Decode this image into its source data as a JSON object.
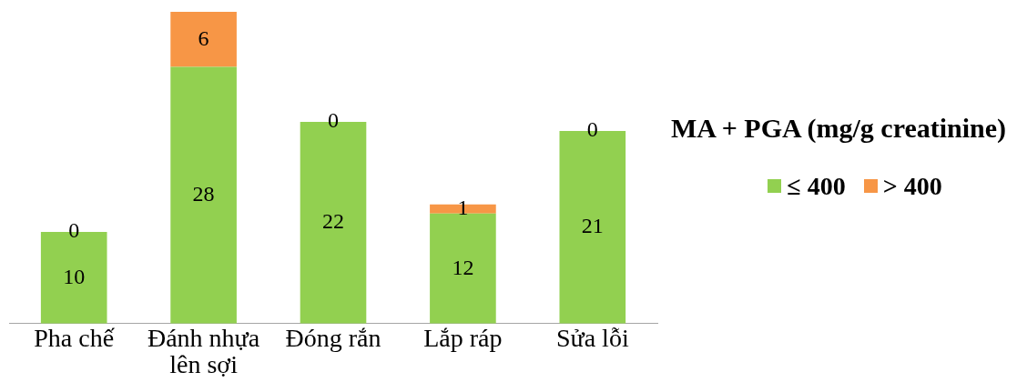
{
  "chart_data": {
    "type": "bar",
    "stacked": true,
    "categories": [
      "Pha chế",
      "Đánh nhựa lên sợi",
      "Đóng rắn",
      "Lắp ráp",
      "Sửa lỗi"
    ],
    "series": [
      {
        "name": "≤ 400",
        "color": "#92d050",
        "values": [
          10,
          28,
          22,
          12,
          21
        ]
      },
      {
        "name": "> 400",
        "color": "#f79646",
        "values": [
          0,
          6,
          0,
          1,
          0
        ]
      }
    ],
    "legend_title": "MA + PGA (mg/g creatinine)",
    "legend": "right",
    "data_labels": true,
    "grid": false
  }
}
